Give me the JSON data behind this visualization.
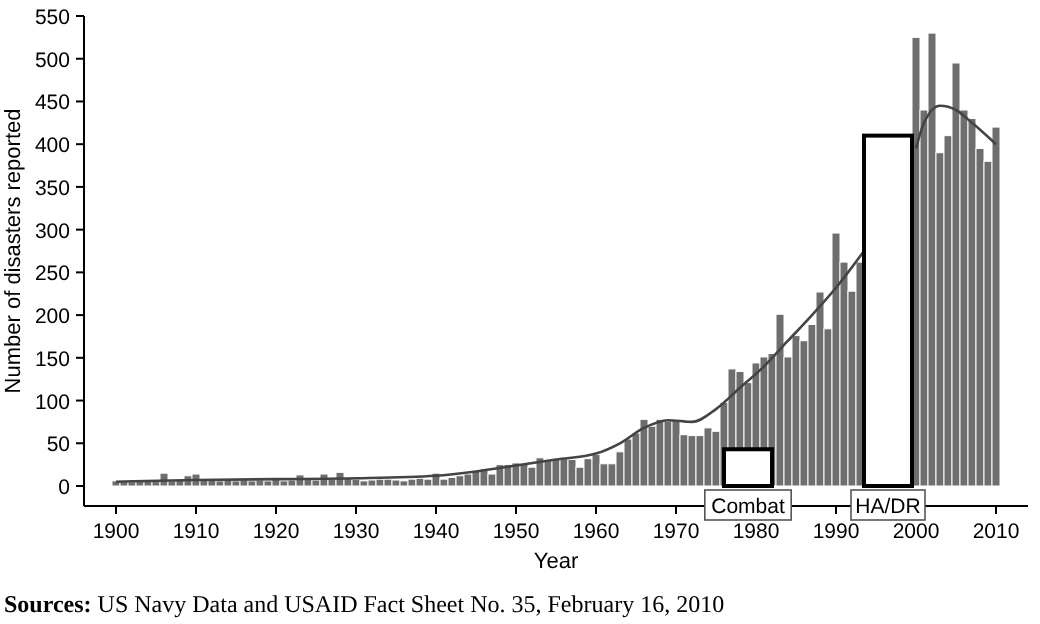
{
  "chart_data": {
    "type": "bar",
    "xlabel": "Year",
    "ylabel": "Number of disasters reported",
    "annotations": [
      "**Sources:** US Navy Data and USAID Fact Sheet No. 35, February 16, 2010"
    ],
    "xlim": [
      1896,
      2014
    ],
    "xticks": [
      1900,
      1910,
      1920,
      1930,
      1940,
      1950,
      1960,
      1970,
      1980,
      1990,
      2000,
      2010
    ],
    "ylim": [
      0,
      550
    ],
    "yticks": [
      0,
      50,
      100,
      150,
      200,
      250,
      300,
      350,
      400,
      450,
      500,
      550
    ],
    "series": [
      {
        "color": "#6e6e6e",
        "x": [
          1900,
          1901,
          1902,
          1903,
          1904,
          1905,
          1906,
          1907,
          1908,
          1909,
          1910,
          1911,
          1912,
          1913,
          1914,
          1915,
          1916,
          1917,
          1918,
          1919,
          1920,
          1921,
          1922,
          1923,
          1924,
          1925,
          1926,
          1927,
          1928,
          1929,
          1930,
          1931,
          1932,
          1933,
          1934,
          1935,
          1936,
          1937,
          1938,
          1939,
          1940,
          1941,
          1942,
          1943,
          1944,
          1945,
          1946,
          1947,
          1948,
          1949,
          1950,
          1951,
          1952,
          1953,
          1954,
          1955,
          1956,
          1957,
          1958,
          1959,
          1960,
          1961,
          1962,
          1963,
          1964,
          1965,
          1966,
          1967,
          1968,
          1969,
          1970,
          1971,
          1972,
          1973,
          1974,
          1975,
          1976,
          1977,
          1978,
          1979,
          1980,
          1981,
          1982,
          1983,
          1984,
          1985,
          1986,
          1987,
          1988,
          1989,
          1990,
          1991,
          1992,
          1993,
          2000,
          2001,
          2002,
          2003,
          2004,
          2005,
          2006,
          2007,
          2008,
          2009,
          2010
        ],
        "values": [
          6,
          6,
          5,
          7,
          6,
          6,
          15,
          6,
          7,
          12,
          14,
          8,
          7,
          6,
          8,
          6,
          7,
          6,
          7,
          6,
          8,
          6,
          7,
          13,
          8,
          7,
          14,
          8,
          16,
          9,
          8,
          6,
          7,
          8,
          8,
          7,
          6,
          8,
          9,
          8,
          15,
          8,
          10,
          12,
          14,
          18,
          20,
          14,
          25,
          25,
          27,
          26,
          22,
          33,
          31,
          32,
          32,
          31,
          22,
          32,
          37,
          26,
          26,
          40,
          55,
          62,
          78,
          70,
          78,
          76,
          77,
          60,
          59,
          59,
          68,
          64,
          98,
          137,
          134,
          121,
          144,
          151,
          155,
          201,
          151,
          176,
          170,
          189,
          227,
          184,
          296,
          262,
          228,
          262,
          525,
          440,
          530,
          390,
          410,
          495,
          440,
          430,
          395,
          380,
          420
        ]
      },
      {
        "type": "line",
        "color": "#444444",
        "x": [
          1900,
          1910,
          1920,
          1930,
          1940,
          1945,
          1950,
          1955,
          1960,
          1963,
          1966,
          1969,
          1972,
          1975,
          1978,
          1981,
          1984,
          1987,
          1990,
          1993.5,
          1997,
          2000,
          2001,
          2003,
          2005,
          2007,
          2010
        ],
        "values": [
          5,
          7,
          8,
          9,
          12,
          17,
          24,
          31,
          38,
          50,
          68,
          77,
          75,
          90,
          115,
          140,
          170,
          200,
          232,
          275,
          null,
          395,
          425,
          445,
          440,
          425,
          400
        ]
      },
      {
        "type": "histogram",
        "name": "Combat",
        "color": "#ffffff",
        "bins": [
          1976,
          1982
        ],
        "values": [
          43
        ]
      },
      {
        "type": "histogram",
        "name": "HA/DR",
        "color": "#ffffff",
        "bins": [
          1993.5,
          1999.5
        ],
        "values": [
          410
        ]
      }
    ]
  }
}
